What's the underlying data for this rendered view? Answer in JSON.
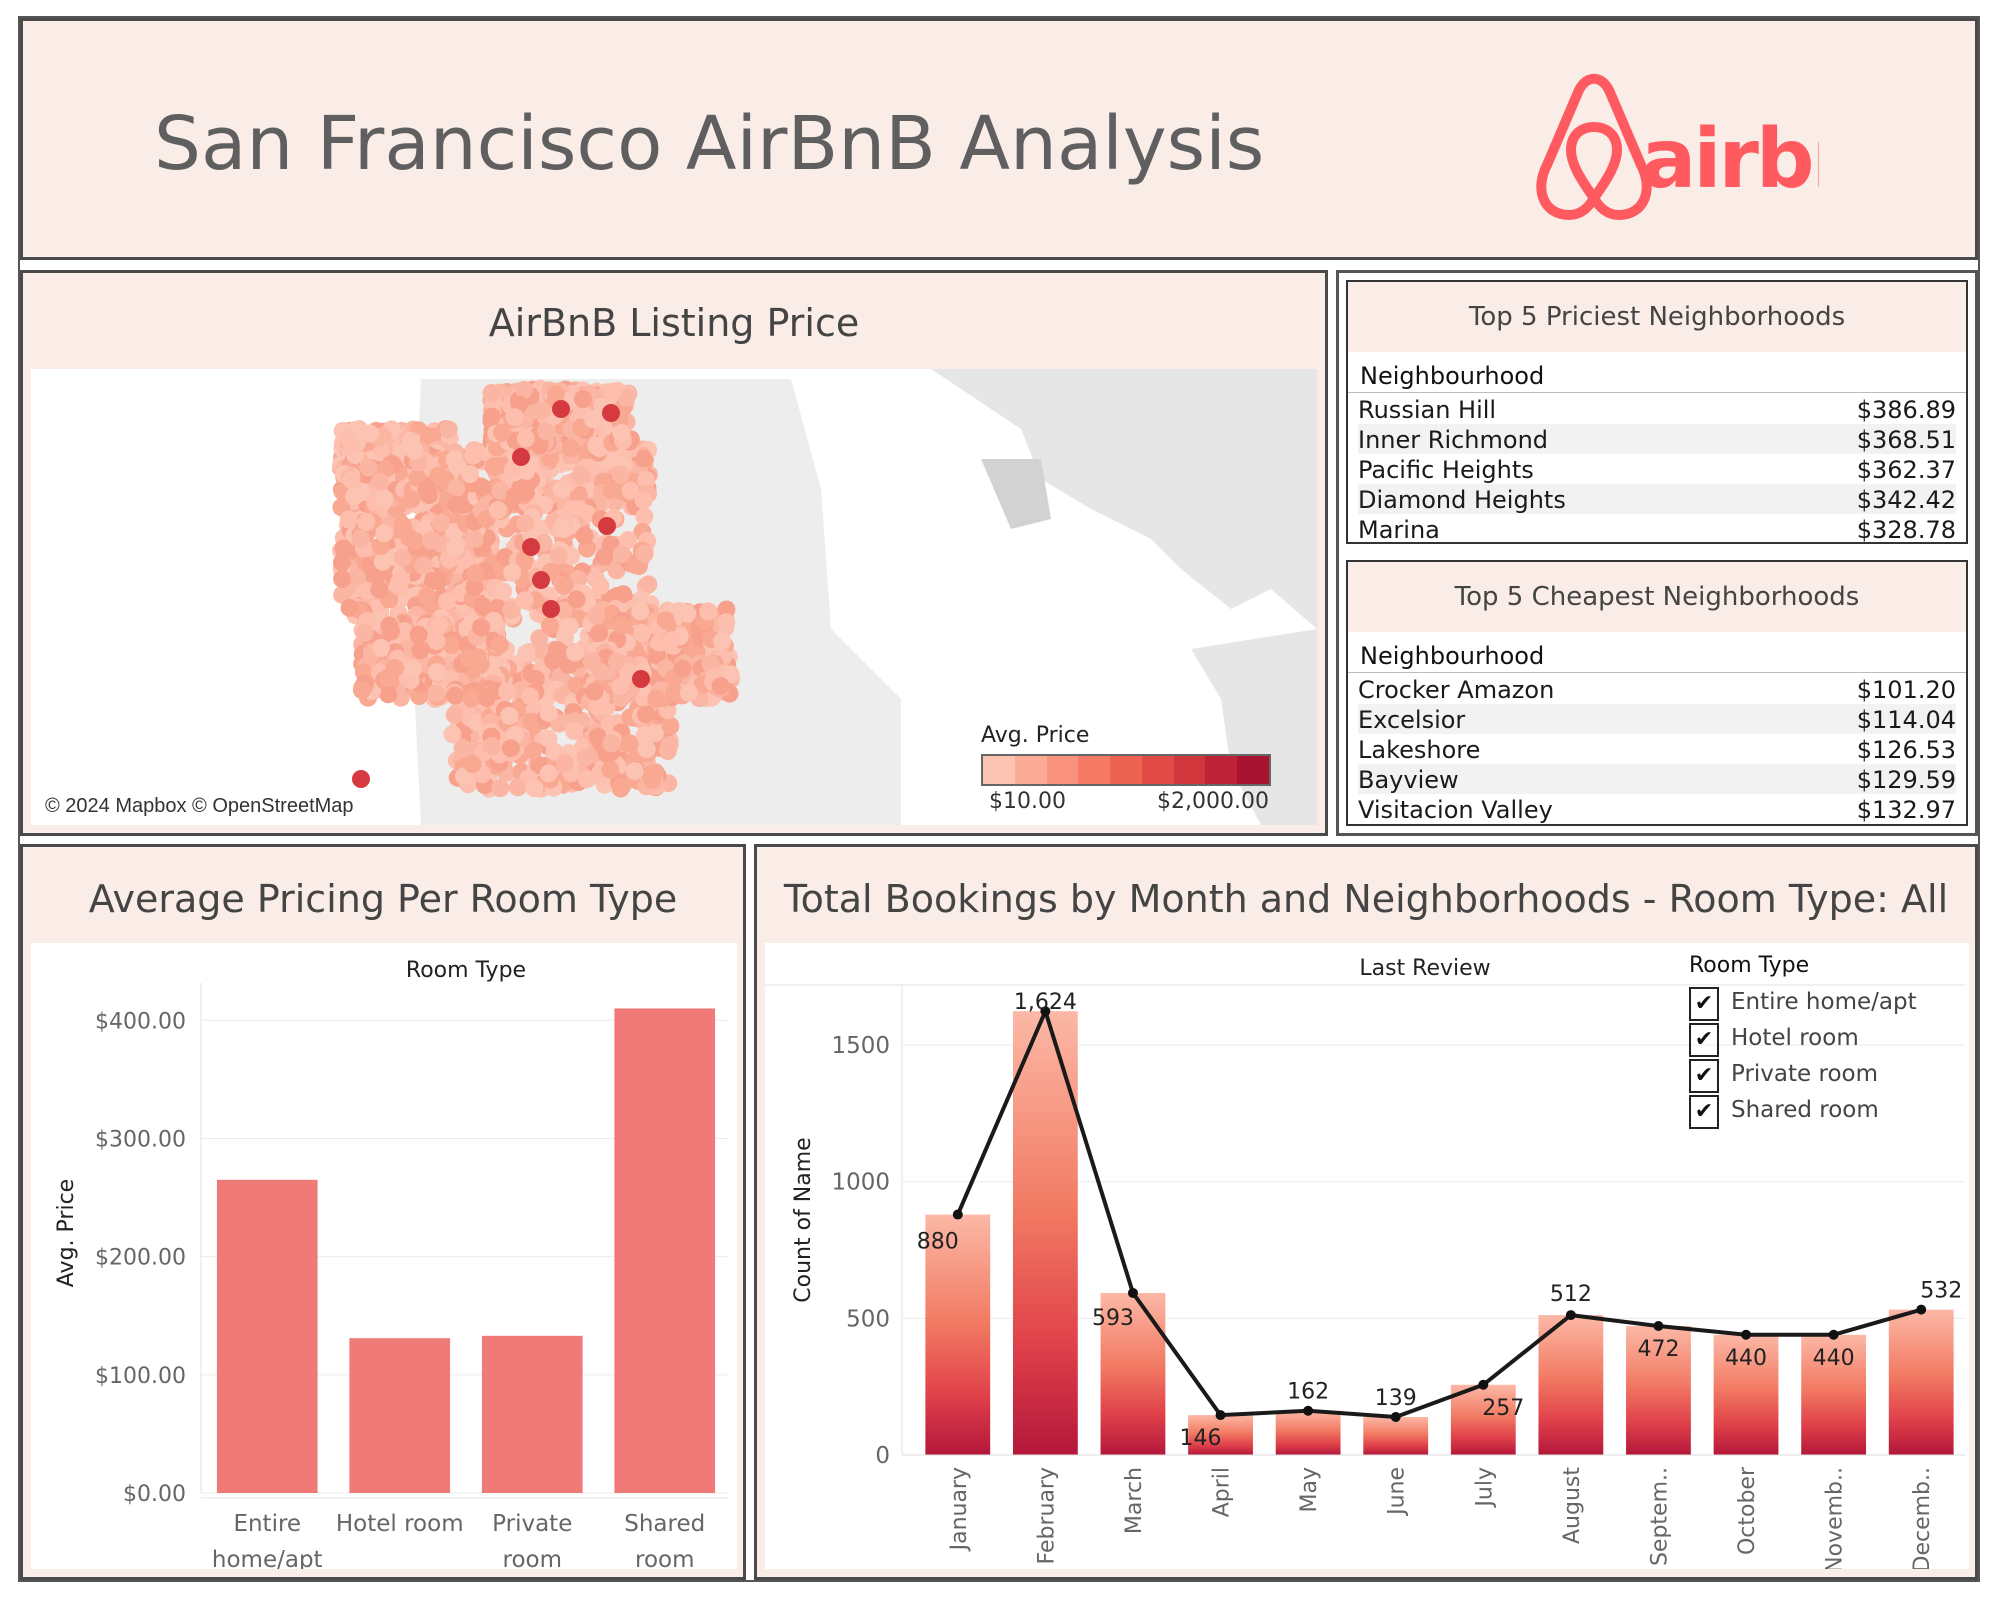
{
  "header": {
    "title": "San Francisco AirBnB Analysis",
    "logo_text": "airbnb",
    "brand_color": "#ff5a5f"
  },
  "map_panel": {
    "title": "AirBnB Listing Price",
    "attribution": "© 2024 Mapbox © OpenStreetMap",
    "legend_title": "Avg. Price",
    "legend_min": "$10.00",
    "legend_max": "$2,000.00",
    "legend_colors": [
      "#fcc3b2",
      "#fbaa96",
      "#f9927c",
      "#f47a65",
      "#ec6353",
      "#e04c45",
      "#d1363c",
      "#bd2236",
      "#a81331"
    ]
  },
  "priciest": {
    "title": "Top 5 Priciest Neighborhoods",
    "column": "Neighbourhood",
    "rows": [
      {
        "name": "Russian Hill",
        "value": "$386.89"
      },
      {
        "name": "Inner Richmond",
        "value": "$368.51"
      },
      {
        "name": "Pacific Heights",
        "value": "$362.37"
      },
      {
        "name": "Diamond Heights",
        "value": "$342.42"
      },
      {
        "name": "Marina",
        "value": "$328.78"
      }
    ]
  },
  "cheapest": {
    "title": "Top 5 Cheapest Neighborhoods",
    "column": "Neighbourhood",
    "rows": [
      {
        "name": "Crocker Amazon",
        "value": "$101.20"
      },
      {
        "name": "Excelsior",
        "value": "$114.04"
      },
      {
        "name": "Lakeshore",
        "value": "$126.53"
      },
      {
        "name": "Bayview",
        "value": "$129.59"
      },
      {
        "name": "Visitacion Valley",
        "value": "$132.97"
      }
    ]
  },
  "room_panel": {
    "title": "Average Pricing Per Room Type"
  },
  "bookings_panel": {
    "title": "Total Bookings by Month and Neighborhoods - Room Type: All",
    "legend_title": "Room Type",
    "legend_items": [
      "Entire home/apt",
      "Hotel room",
      "Private room",
      "Shared room"
    ]
  },
  "chart_data": [
    {
      "type": "bar",
      "title": "Room Type",
      "categories": [
        "Entire home/apt",
        "Hotel room",
        "Private room",
        "Shared room"
      ],
      "category_labels": [
        [
          "Entire",
          "home/apt"
        ],
        [
          "Hotel room"
        ],
        [
          "Private",
          "room"
        ],
        [
          "Shared",
          "room"
        ]
      ],
      "values": [
        265,
        131,
        133,
        410
      ],
      "ylabel": "Avg. Price",
      "yticks": [
        "$0.00",
        "$100.00",
        "$200.00",
        "$300.00",
        "$400.00"
      ],
      "ylim": [
        0,
        440
      ],
      "bar_color": "#f07a78",
      "grid": true
    },
    {
      "type": "bar",
      "title": "Last Review",
      "categories": [
        "January",
        "February",
        "March",
        "April",
        "May",
        "June",
        "July",
        "August",
        "September",
        "October",
        "November",
        "December"
      ],
      "category_labels": [
        "January",
        "February",
        "March",
        "April",
        "May",
        "June",
        "July",
        "August",
        "Septem..",
        "October",
        "Novemb..",
        "Decemb.."
      ],
      "values": [
        880,
        1624,
        593,
        146,
        162,
        139,
        257,
        512,
        472,
        440,
        440,
        532
      ],
      "value_labels": [
        "880",
        "1,624",
        "593",
        "146",
        "162",
        "139",
        "257",
        "512",
        "472",
        "440",
        "440",
        "532"
      ],
      "line_overlay": true,
      "ylabel": "Count of Name",
      "yticks": [
        0,
        500,
        1000,
        1500
      ],
      "ylim": [
        0,
        1720
      ],
      "grid": true
    }
  ]
}
